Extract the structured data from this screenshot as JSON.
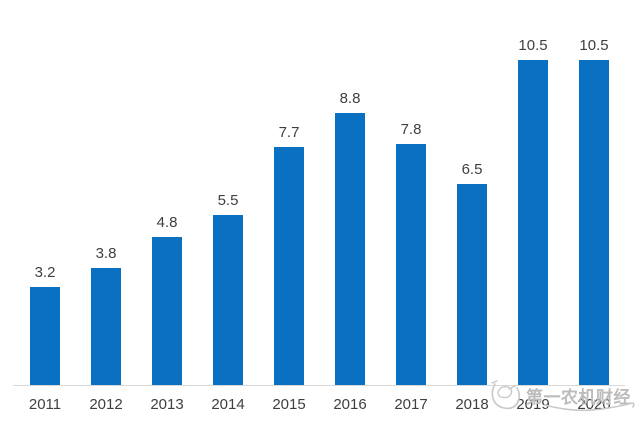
{
  "page": {
    "background": "#ffffff"
  },
  "chart_data": {
    "type": "bar",
    "title": "",
    "xlabel": "",
    "ylabel": "",
    "categories": [
      "2011",
      "2012",
      "2013",
      "2014",
      "2015",
      "2016",
      "2017",
      "2018",
      "2019",
      "2020"
    ],
    "values": [
      3.2,
      3.8,
      4.8,
      5.5,
      7.7,
      8.8,
      7.8,
      6.5,
      10.5,
      10.5
    ],
    "data_labels": [
      "3.2",
      "3.8",
      "4.8",
      "5.5",
      "7.7",
      "8.8",
      "7.8",
      "6.5",
      "10.5",
      "10.5"
    ],
    "ylim": [
      0,
      11
    ],
    "grid": false,
    "legend": null,
    "y_axis_visible": false,
    "bar_color": "#0a70c2",
    "data_label_color": "#3f3f3f",
    "tick_label_color": "#3f3f3f",
    "axis_line_color": "#d9d9d9"
  },
  "watermark": {
    "logo_icon": "scribble-bird-circle-icon",
    "text": "第一农机财经",
    "color": "#bcbcbc",
    "stroke_color": "#c9c9c9"
  }
}
